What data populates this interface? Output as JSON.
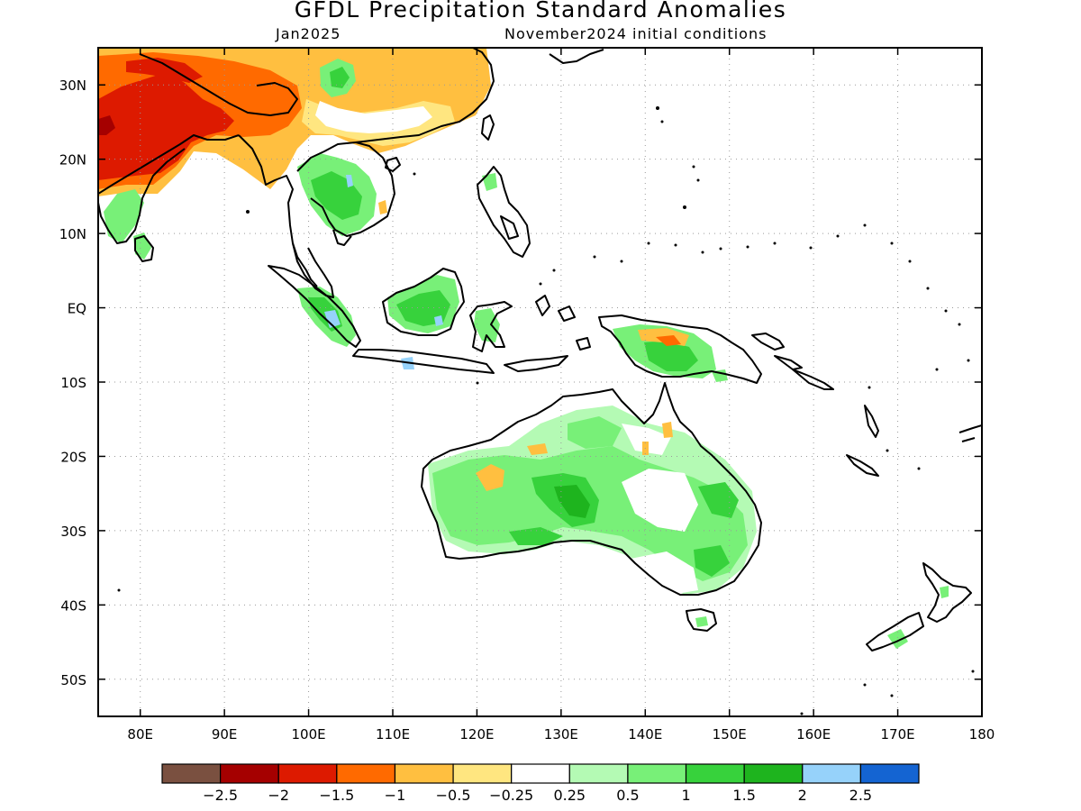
{
  "header": {
    "title": "GFDL Precipitation Standard Anomalies",
    "month": "Jan2025",
    "init": "November2024 initial conditions"
  },
  "map": {
    "lon_range": [
      75,
      180
    ],
    "lat_range": [
      -55,
      35
    ],
    "lat_ticks": [
      {
        "value": 30,
        "label": "30N"
      },
      {
        "value": 20,
        "label": "20N"
      },
      {
        "value": 10,
        "label": "10N"
      },
      {
        "value": 0,
        "label": "EQ"
      },
      {
        "value": -10,
        "label": "10S"
      },
      {
        "value": -20,
        "label": "20S"
      },
      {
        "value": -30,
        "label": "30S"
      },
      {
        "value": -40,
        "label": "40S"
      },
      {
        "value": -50,
        "label": "50S"
      }
    ],
    "lon_ticks": [
      {
        "value": 80,
        "label": "80E"
      },
      {
        "value": 90,
        "label": "90E"
      },
      {
        "value": 100,
        "label": "100E"
      },
      {
        "value": 110,
        "label": "110E"
      },
      {
        "value": 120,
        "label": "120E"
      },
      {
        "value": 130,
        "label": "130E"
      },
      {
        "value": 140,
        "label": "140E"
      },
      {
        "value": 150,
        "label": "150E"
      },
      {
        "value": 160,
        "label": "160E"
      },
      {
        "value": 170,
        "label": "170E"
      },
      {
        "value": 180,
        "label": "180"
      }
    ]
  },
  "colorbar": {
    "colors": [
      "#7a5040",
      "#a50000",
      "#dd1a00",
      "#ff6a00",
      "#ffbf40",
      "#ffe680",
      "#ffffff",
      "#b4fab4",
      "#78f078",
      "#37d23c",
      "#1eb41e",
      "#96d2fa",
      "#1464d2"
    ],
    "labels": [
      "-2.5",
      "-2",
      "-1.5",
      "-1",
      "-0.5",
      "-0.25",
      "0.25",
      "0.5",
      "1",
      "1.5",
      "2",
      "2.5"
    ]
  }
}
